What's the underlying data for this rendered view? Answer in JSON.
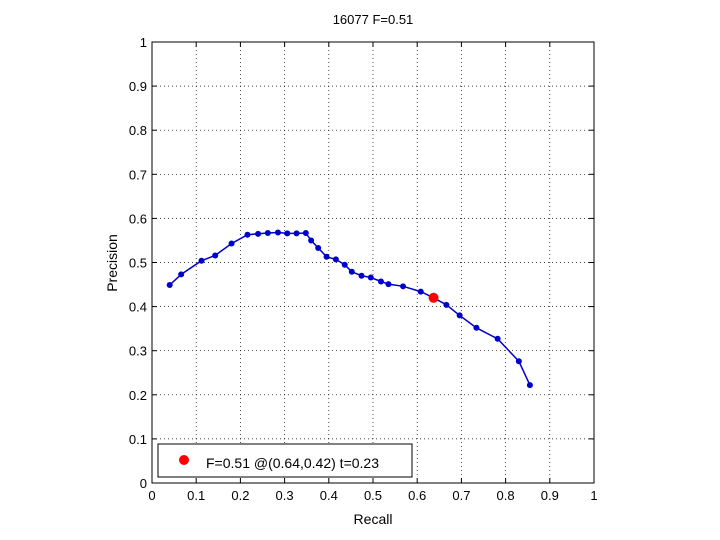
{
  "chart_data": {
    "type": "line",
    "title": "16077 F=0.51",
    "xlabel": "Recall",
    "ylabel": "Precision",
    "xlim": [
      0,
      1
    ],
    "ylim": [
      0,
      1
    ],
    "grid": true,
    "xticks": [
      "0",
      "0.1",
      "0.2",
      "0.3",
      "0.4",
      "0.5",
      "0.6",
      "0.7",
      "0.8",
      "0.9",
      "1"
    ],
    "yticks": [
      "0",
      "0.1",
      "0.2",
      "0.3",
      "0.4",
      "0.5",
      "0.6",
      "0.7",
      "0.8",
      "0.9",
      "1"
    ],
    "series": [
      {
        "color": "#0000cc",
        "x": [
          0.04,
          0.066,
          0.112,
          0.143,
          0.18,
          0.216,
          0.24,
          0.262,
          0.285,
          0.306,
          0.327,
          0.348,
          0.36,
          0.376,
          0.395,
          0.416,
          0.436,
          0.452,
          0.474,
          0.495,
          0.518,
          0.535,
          0.568,
          0.608,
          0.637,
          0.666,
          0.696,
          0.734,
          0.782,
          0.83,
          0.855
        ],
        "y": [
          0.449,
          0.473,
          0.504,
          0.516,
          0.543,
          0.563,
          0.565,
          0.567,
          0.568,
          0.566,
          0.566,
          0.567,
          0.55,
          0.533,
          0.513,
          0.507,
          0.495,
          0.479,
          0.47,
          0.466,
          0.457,
          0.451,
          0.446,
          0.434,
          0.42,
          0.404,
          0.38,
          0.352,
          0.327,
          0.276,
          0.222
        ]
      }
    ],
    "highlight": {
      "x": 0.637,
      "y": 0.42,
      "color": "#ff0000"
    },
    "legend": {
      "placement": "bottom-left",
      "text": "F=0.51 @(0.64,0.42) t=0.23"
    }
  }
}
